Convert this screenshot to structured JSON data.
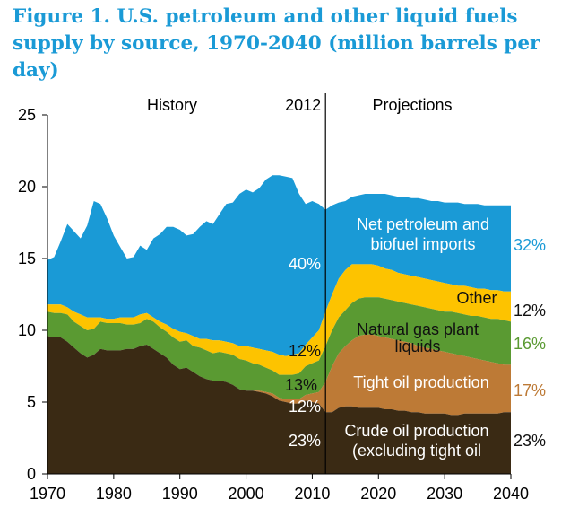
{
  "colors": {
    "title": "#1a9ad6",
    "imports": "#1a9ad6",
    "other": "#fdc300",
    "ngl": "#5a9a32",
    "tight": "#bd7a36",
    "crude": "#3a2a14",
    "axis": "#000000"
  },
  "chart_data": {
    "type": "area",
    "title": "Figure 1. U.S. petroleum and other liquid fuels supply by source, 1970-2040 (million barrels per day)",
    "xlabel": "",
    "ylabel": "",
    "xlim": [
      1970,
      2040
    ],
    "ylim": [
      0,
      25
    ],
    "xticks": [
      "1970",
      "1980",
      "1990",
      "2000",
      "2010",
      "2020",
      "2030",
      "2040"
    ],
    "yticks": [
      "0",
      "5",
      "10",
      "15",
      "20",
      "25"
    ],
    "grid": false,
    "divider": {
      "x": 2012,
      "label": "2012",
      "left_label": "History",
      "right_label": "Projections"
    },
    "x": [
      1970,
      1971,
      1972,
      1973,
      1974,
      1975,
      1976,
      1977,
      1978,
      1979,
      1980,
      1981,
      1982,
      1983,
      1984,
      1985,
      1986,
      1987,
      1988,
      1989,
      1990,
      1991,
      1992,
      1993,
      1994,
      1995,
      1996,
      1997,
      1998,
      1999,
      2000,
      2001,
      2002,
      2003,
      2004,
      2005,
      2006,
      2007,
      2008,
      2009,
      2010,
      2011,
      2012,
      2013,
      2014,
      2015,
      2016,
      2017,
      2018,
      2019,
      2020,
      2021,
      2022,
      2023,
      2024,
      2025,
      2026,
      2027,
      2028,
      2029,
      2030,
      2031,
      2032,
      2033,
      2034,
      2035,
      2036,
      2037,
      2038,
      2039,
      2040
    ],
    "stacked_totals": [
      [
        9.6,
        9.5,
        9.5,
        9.2,
        8.8,
        8.4,
        8.1,
        8.3,
        8.7,
        8.6,
        8.6,
        8.6,
        8.7,
        8.7,
        8.9,
        9.0,
        8.7,
        8.4,
        8.1,
        7.6,
        7.3,
        7.4,
        7.1,
        6.8,
        6.6,
        6.5,
        6.5,
        6.4,
        6.2,
        5.9,
        5.8,
        5.8,
        5.7,
        5.6,
        5.4,
        5.1,
        5.0,
        4.9,
        4.9,
        5.1,
        5.0,
        4.9,
        4.3,
        4.3,
        4.6,
        4.7,
        4.7,
        4.6,
        4.6,
        4.6,
        4.6,
        4.5,
        4.5,
        4.4,
        4.4,
        4.3,
        4.3,
        4.2,
        4.2,
        4.2,
        4.2,
        4.1,
        4.1,
        4.2,
        4.2,
        4.2,
        4.2,
        4.2,
        4.2,
        4.3,
        4.3
      ],
      [
        9.6,
        9.5,
        9.5,
        9.2,
        8.8,
        8.4,
        8.1,
        8.3,
        8.7,
        8.6,
        8.6,
        8.6,
        8.7,
        8.7,
        8.9,
        9.0,
        8.7,
        8.4,
        8.1,
        7.6,
        7.3,
        7.4,
        7.1,
        6.8,
        6.6,
        6.5,
        6.5,
        6.4,
        6.2,
        5.9,
        5.8,
        5.8,
        5.8,
        5.7,
        5.6,
        5.3,
        5.2,
        5.2,
        5.2,
        5.5,
        5.6,
        5.7,
        6.4,
        7.5,
        8.4,
        8.9,
        9.3,
        9.6,
        9.7,
        9.7,
        9.6,
        9.5,
        9.4,
        9.3,
        9.2,
        9.1,
        8.9,
        8.8,
        8.7,
        8.6,
        8.5,
        8.4,
        8.3,
        8.2,
        8.1,
        8.0,
        7.9,
        7.8,
        7.7,
        7.6,
        7.6
      ],
      [
        11.3,
        11.2,
        11.2,
        11.1,
        10.6,
        10.3,
        10.0,
        10.1,
        10.6,
        10.5,
        10.5,
        10.5,
        10.4,
        10.4,
        10.5,
        10.8,
        10.6,
        10.2,
        9.9,
        9.5,
        9.2,
        9.3,
        8.9,
        8.8,
        8.6,
        8.4,
        8.5,
        8.4,
        8.3,
        8.0,
        7.9,
        7.7,
        7.6,
        7.4,
        7.2,
        6.9,
        6.9,
        6.9,
        7.0,
        7.5,
        7.7,
        7.9,
        8.9,
        10.0,
        10.9,
        11.4,
        11.9,
        12.2,
        12.3,
        12.3,
        12.3,
        12.2,
        12.1,
        12.0,
        11.9,
        11.8,
        11.7,
        11.6,
        11.5,
        11.4,
        11.3,
        11.3,
        11.2,
        11.1,
        11.0,
        11.0,
        10.9,
        10.8,
        10.8,
        10.7,
        10.6
      ],
      [
        11.8,
        11.8,
        11.8,
        11.6,
        11.3,
        11.1,
        10.9,
        10.9,
        10.9,
        10.8,
        10.8,
        10.9,
        10.9,
        10.9,
        11.1,
        11.2,
        10.9,
        10.6,
        10.4,
        10.1,
        9.9,
        9.8,
        9.6,
        9.4,
        9.4,
        9.3,
        9.3,
        9.2,
        9.1,
        8.9,
        8.9,
        8.8,
        8.7,
        8.6,
        8.5,
        8.3,
        8.2,
        8.3,
        8.4,
        9.0,
        9.5,
        10.0,
        11.3,
        12.5,
        13.6,
        14.2,
        14.6,
        14.6,
        14.6,
        14.6,
        14.5,
        14.3,
        14.2,
        14.0,
        13.9,
        13.8,
        13.7,
        13.6,
        13.5,
        13.4,
        13.3,
        13.2,
        13.1,
        13.1,
        13.0,
        12.9,
        12.9,
        12.8,
        12.8,
        12.7,
        12.7
      ],
      [
        14.9,
        15.1,
        16.2,
        17.4,
        16.9,
        16.4,
        17.3,
        19.0,
        18.8,
        17.8,
        16.6,
        15.8,
        15.0,
        15.1,
        15.9,
        15.6,
        16.4,
        16.7,
        17.2,
        17.2,
        17.0,
        16.6,
        16.7,
        17.2,
        17.6,
        17.4,
        18.1,
        18.8,
        18.9,
        19.5,
        19.8,
        19.6,
        19.9,
        20.5,
        20.8,
        20.8,
        20.7,
        20.6,
        19.5,
        18.8,
        19.0,
        18.8,
        18.4,
        18.7,
        18.9,
        19.0,
        19.3,
        19.4,
        19.5,
        19.5,
        19.5,
        19.5,
        19.4,
        19.3,
        19.3,
        19.2,
        19.2,
        19.1,
        19.0,
        19.0,
        18.9,
        18.9,
        18.9,
        18.8,
        18.8,
        18.8,
        18.7,
        18.7,
        18.7,
        18.7,
        18.7
      ]
    ],
    "series": [
      {
        "name": "Crude oil production (excluding tight oil",
        "pct_2012": "23%",
        "pct_2040": "23%"
      },
      {
        "name": "Tight oil production",
        "pct_2012": "12%",
        "pct_2040": "17%"
      },
      {
        "name": "Natural gas plant liquids",
        "pct_2012": "13%",
        "pct_2040": "16%"
      },
      {
        "name": "Other",
        "pct_2012": "12%",
        "pct_2040": "12%"
      },
      {
        "name": "Net petroleum and biofuel imports",
        "pct_2012": "40%",
        "pct_2040": "32%"
      }
    ]
  }
}
